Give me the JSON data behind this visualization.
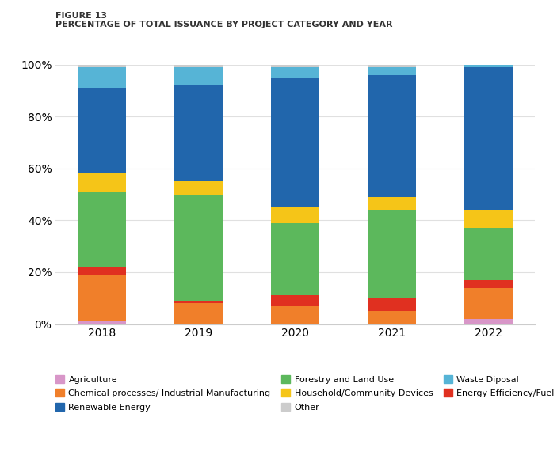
{
  "title_line1": "FIGURE 13",
  "title_line2": "PERCENTAGE OF TOTAL ISSUANCE BY PROJECT CATEGORY AND YEAR",
  "years": [
    "2018",
    "2019",
    "2020",
    "2021",
    "2022"
  ],
  "categories": [
    "Agriculture",
    "Chemical processes/ Industrial Manufacturing",
    "Energy Efficiency/Fuel Switching",
    "Forestry and Land Use",
    "Household/Community Devices",
    "Renewable Energy",
    "Waste Diposal",
    "Other"
  ],
  "colors": {
    "Agriculture": "#d896c8",
    "Chemical processes/ Industrial Manufacturing": "#f07f2a",
    "Energy Efficiency/Fuel Switching": "#e03020",
    "Forestry and Land Use": "#5cb85c",
    "Household/Community Devices": "#f5c518",
    "Renewable Energy": "#2166ac",
    "Waste Diposal": "#56b4d6",
    "Other": "#cccccc"
  },
  "data": {
    "Agriculture": [
      1,
      0,
      0,
      0,
      2
    ],
    "Chemical processes/ Industrial Manufacturing": [
      18,
      8,
      7,
      5,
      12
    ],
    "Energy Efficiency/Fuel Switching": [
      3,
      1,
      4,
      5,
      3
    ],
    "Forestry and Land Use": [
      29,
      41,
      28,
      34,
      20
    ],
    "Household/Community Devices": [
      7,
      5,
      6,
      5,
      7
    ],
    "Renewable Energy": [
      33,
      37,
      50,
      47,
      55
    ],
    "Waste Diposal": [
      8,
      7,
      4,
      3,
      1
    ],
    "Other": [
      1,
      1,
      1,
      1,
      0
    ]
  },
  "ylim": [
    0,
    100
  ],
  "yticks": [
    0,
    20,
    40,
    60,
    80,
    100
  ],
  "ytick_labels": [
    "0%",
    "20%",
    "40%",
    "60%",
    "80%",
    "100%"
  ],
  "background_color": "#ffffff",
  "legend_order": [
    "Agriculture",
    "Chemical processes/ Industrial Manufacturing",
    "Renewable Energy",
    "Forestry and Land Use",
    "Household/Community Devices",
    "Other",
    "Waste Diposal",
    "Energy Efficiency/Fuel Switching"
  ],
  "title_fontsize": 8,
  "tick_fontsize": 10,
  "legend_fontsize": 8,
  "bar_width": 0.5
}
